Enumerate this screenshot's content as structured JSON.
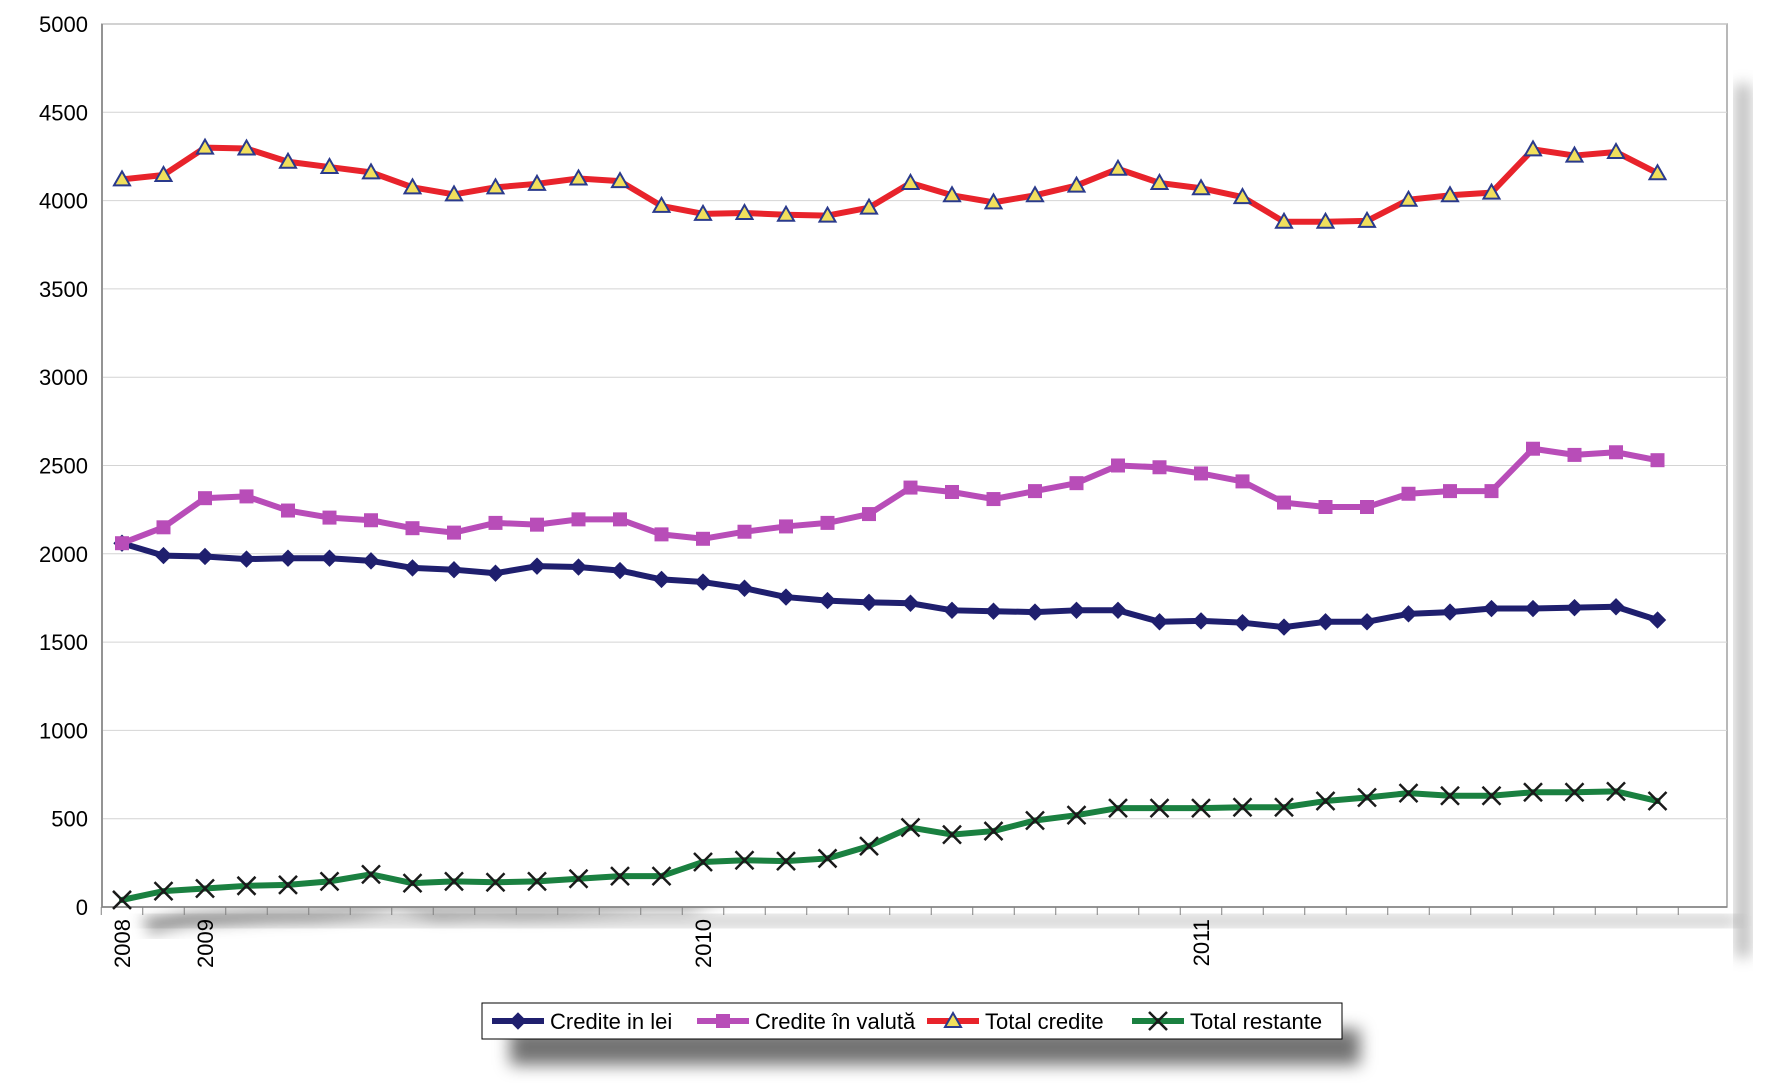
{
  "chart_data": {
    "type": "line",
    "title": "",
    "xlabel": "",
    "ylabel": "",
    "ylim": [
      0,
      5000
    ],
    "y_ticks": [
      "0",
      "500",
      "1000",
      "1500",
      "2000",
      "2500",
      "3000",
      "3500",
      "4000",
      "4500",
      "5000"
    ],
    "year_labels": [
      {
        "label": "2008",
        "index": 0
      },
      {
        "label": "2009",
        "index": 2
      },
      {
        "label": "2010",
        "index": 14
      },
      {
        "label": "2011",
        "index": 26
      }
    ],
    "grid": true,
    "legend_position": "bottom",
    "series": [
      {
        "name": "Credite in lei",
        "color": "#1f1f6e",
        "marker": "diamond",
        "values": [
          2060,
          1990,
          1985,
          1970,
          1975,
          1975,
          1960,
          1920,
          1910,
          1890,
          1930,
          1925,
          1905,
          1855,
          1840,
          1805,
          1755,
          1735,
          1725,
          1720,
          1680,
          1675,
          1670,
          1680,
          1680,
          1615,
          1620,
          1610,
          1585,
          1615,
          1615,
          1660,
          1670,
          1690,
          1690,
          1695,
          1700,
          1625
        ]
      },
      {
        "name": "Credite în valută",
        "color": "#b84db8",
        "marker": "square",
        "values": [
          2060,
          2150,
          2315,
          2325,
          2245,
          2205,
          2190,
          2145,
          2120,
          2175,
          2165,
          2195,
          2195,
          2110,
          2085,
          2125,
          2155,
          2175,
          2225,
          2375,
          2350,
          2310,
          2355,
          2400,
          2500,
          2490,
          2455,
          2410,
          2290,
          2265,
          2265,
          2340,
          2355,
          2355,
          2595,
          2560,
          2575,
          2530
        ]
      },
      {
        "name": "Total credite",
        "color": "#e8232b",
        "marker": "triangle",
        "values": [
          4120,
          4145,
          4300,
          4295,
          4220,
          4190,
          4160,
          4075,
          4035,
          4075,
          4095,
          4125,
          4110,
          3970,
          3925,
          3930,
          3920,
          3915,
          3960,
          4100,
          4030,
          3990,
          4030,
          4085,
          4180,
          4100,
          4070,
          4020,
          3880,
          3880,
          3885,
          4005,
          4030,
          4045,
          4290,
          4255,
          4275,
          4155
        ]
      },
      {
        "name": "Total restante",
        "color": "#1a8040",
        "marker": "x",
        "values": [
          40,
          90,
          105,
          120,
          125,
          145,
          185,
          135,
          145,
          140,
          145,
          160,
          175,
          175,
          255,
          265,
          260,
          275,
          345,
          450,
          410,
          430,
          490,
          520,
          560,
          560,
          560,
          565,
          565,
          600,
          620,
          645,
          630,
          630,
          650,
          650,
          655,
          600
        ]
      }
    ]
  }
}
